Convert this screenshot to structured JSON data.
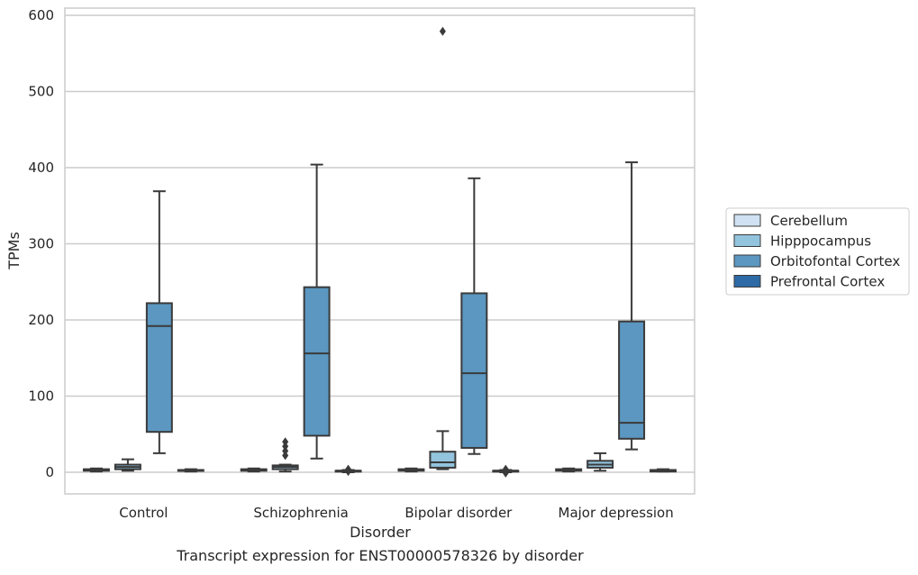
{
  "chart_data": {
    "type": "box",
    "title": "Transcript expression for ENST00000578326 by disorder",
    "xlabel": "Disorder",
    "ylabel": "TPMs",
    "ylim": [
      -28,
      610
    ],
    "yticks": [
      0,
      100,
      200,
      300,
      400,
      500,
      600
    ],
    "grid": "horizontal",
    "legend_position": "right",
    "categories": [
      "Control",
      "Schizophrenia",
      "Bipolar disorder",
      "Major depression"
    ],
    "series": [
      {
        "name": "Cerebellum",
        "color": "#cfe1f2",
        "boxes": [
          {
            "whisker_low": 1,
            "q1": 2,
            "median": 3,
            "q3": 4,
            "whisker_high": 5,
            "outliers": []
          },
          {
            "whisker_low": 1,
            "q1": 2,
            "median": 3,
            "q3": 4,
            "whisker_high": 5,
            "outliers": []
          },
          {
            "whisker_low": 1,
            "q1": 2,
            "median": 3,
            "q3": 4,
            "whisker_high": 5,
            "outliers": []
          },
          {
            "whisker_low": 1,
            "q1": 2,
            "median": 3,
            "q3": 4,
            "whisker_high": 5,
            "outliers": []
          }
        ]
      },
      {
        "name": "Hipppocampus",
        "color": "#93c4de",
        "boxes": [
          {
            "whisker_low": 2,
            "q1": 4,
            "median": 7,
            "q3": 10,
            "whisker_high": 17,
            "outliers": []
          },
          {
            "whisker_low": 1,
            "q1": 4,
            "median": 7,
            "q3": 9,
            "whisker_high": 10,
            "outliers": [
              22,
              28,
              34,
              40
            ]
          },
          {
            "whisker_low": 4,
            "q1": 6,
            "median": 13,
            "q3": 27,
            "whisker_high": 54,
            "outliers": [
              579
            ]
          },
          {
            "whisker_low": 2,
            "q1": 6,
            "median": 10,
            "q3": 15,
            "whisker_high": 25,
            "outliers": []
          }
        ]
      },
      {
        "name": "Orbitofontal Cortex",
        "color": "#5b97c1",
        "boxes": [
          {
            "whisker_low": 25,
            "q1": 53,
            "median": 192,
            "q3": 222,
            "whisker_high": 369,
            "outliers": []
          },
          {
            "whisker_low": 18,
            "q1": 48,
            "median": 156,
            "q3": 243,
            "whisker_high": 404,
            "outliers": []
          },
          {
            "whisker_low": 24,
            "q1": 32,
            "median": 130,
            "q3": 235,
            "whisker_high": 386,
            "outliers": []
          },
          {
            "whisker_low": 30,
            "q1": 44,
            "median": 65,
            "q3": 198,
            "whisker_high": 407,
            "outliers": []
          }
        ]
      },
      {
        "name": "Prefrontal Cortex",
        "color": "#2d6aa6",
        "boxes": [
          {
            "whisker_low": 1,
            "q1": 2,
            "median": 2,
            "q3": 3,
            "whisker_high": 4,
            "outliers": []
          },
          {
            "whisker_low": 0,
            "q1": 1,
            "median": 2,
            "q3": 2,
            "whisker_high": 3,
            "outliers": [
              4,
              1
            ]
          },
          {
            "whisker_low": 0,
            "q1": 1,
            "median": 2,
            "q3": 2,
            "whisker_high": 3,
            "outliers": [
              -1,
              4
            ]
          },
          {
            "whisker_low": 1,
            "q1": 1,
            "median": 2,
            "q3": 3,
            "whisker_high": 4,
            "outliers": []
          }
        ]
      }
    ]
  }
}
